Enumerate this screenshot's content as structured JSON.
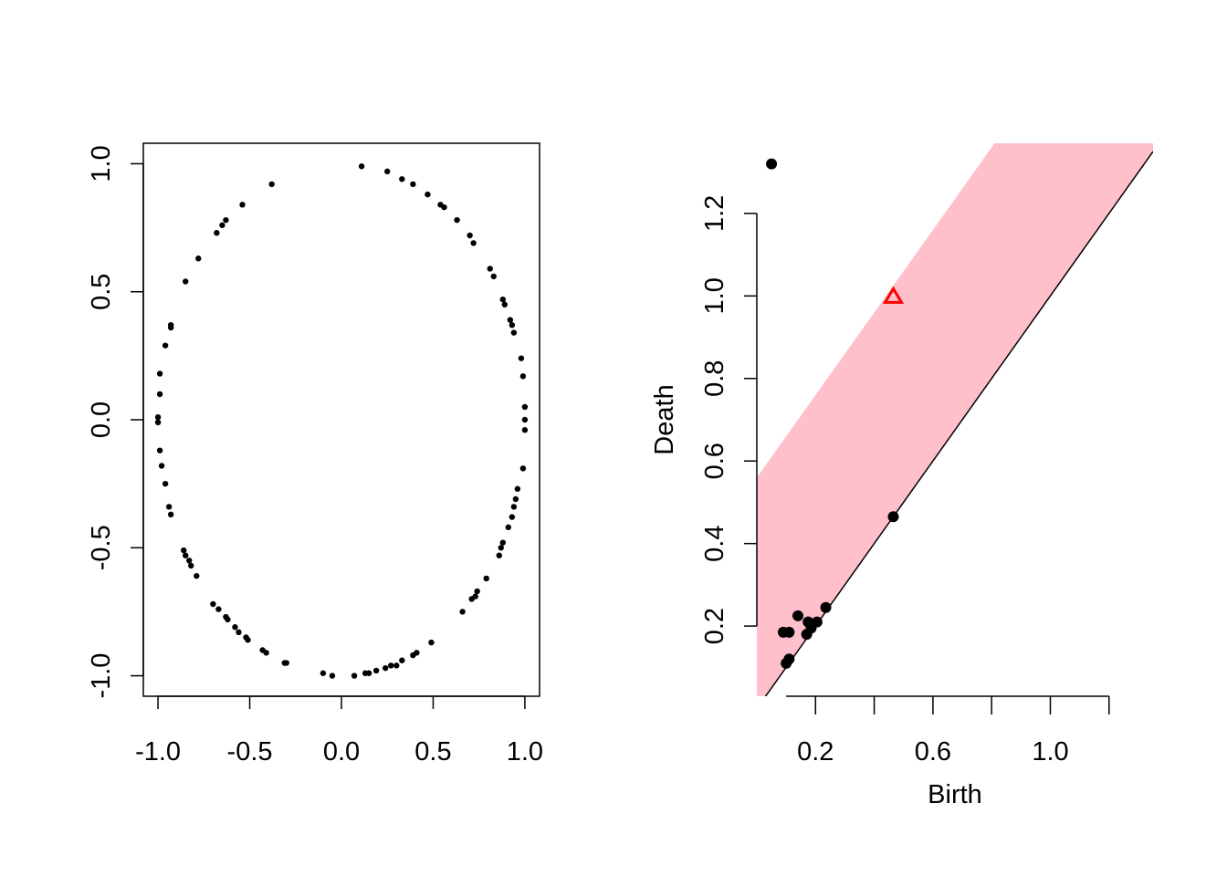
{
  "chart_data": [
    {
      "type": "scatter",
      "title": "",
      "xlabel": "",
      "ylabel": "",
      "xlim": [
        -1.08,
        1.08
      ],
      "ylim": [
        -1.08,
        1.08
      ],
      "x_ticks": [
        -1.0,
        -0.5,
        0.0,
        0.5,
        1.0
      ],
      "x_tick_labels": [
        "-1.0",
        "-0.5",
        "0.0",
        "0.5",
        "1.0"
      ],
      "y_ticks": [
        -1.0,
        -0.5,
        0.0,
        0.5,
        1.0
      ],
      "y_tick_labels": [
        "-1.0",
        "-0.5",
        "0.0",
        "0.5",
        "1.0"
      ],
      "box": true,
      "grid": false,
      "legend": "none",
      "point_color": "#000000",
      "points": [
        [
          0.11,
          0.99
        ],
        [
          0.25,
          0.97
        ],
        [
          0.33,
          0.94
        ],
        [
          0.39,
          0.92
        ],
        [
          0.47,
          0.88
        ],
        [
          0.54,
          0.84
        ],
        [
          0.56,
          0.83
        ],
        [
          0.63,
          0.78
        ],
        [
          0.7,
          0.72
        ],
        [
          0.72,
          0.69
        ],
        [
          0.81,
          0.59
        ],
        [
          0.83,
          0.56
        ],
        [
          0.88,
          0.47
        ],
        [
          0.89,
          0.45
        ],
        [
          0.92,
          0.39
        ],
        [
          0.93,
          0.37
        ],
        [
          0.94,
          0.34
        ],
        [
          0.98,
          0.24
        ],
        [
          0.99,
          0.17
        ],
        [
          1.0,
          0.05
        ],
        [
          1.0,
          0.0
        ],
        [
          1.0,
          -0.04
        ],
        [
          0.99,
          -0.19
        ],
        [
          0.96,
          -0.27
        ],
        [
          0.95,
          -0.31
        ],
        [
          0.94,
          -0.34
        ],
        [
          0.93,
          -0.38
        ],
        [
          0.91,
          -0.42
        ],
        [
          0.88,
          -0.48
        ],
        [
          0.87,
          -0.5
        ],
        [
          0.86,
          -0.53
        ],
        [
          0.79,
          -0.62
        ],
        [
          0.74,
          -0.67
        ],
        [
          0.73,
          -0.69
        ],
        [
          0.71,
          -0.7
        ],
        [
          0.66,
          -0.75
        ],
        [
          0.49,
          -0.87
        ],
        [
          0.41,
          -0.91
        ],
        [
          0.39,
          -0.92
        ],
        [
          0.33,
          -0.94
        ],
        [
          0.3,
          -0.96
        ],
        [
          0.27,
          -0.96
        ],
        [
          0.24,
          -0.97
        ],
        [
          0.19,
          -0.98
        ],
        [
          0.15,
          -0.99
        ],
        [
          0.13,
          -0.99
        ],
        [
          0.07,
          -1.0
        ],
        [
          -0.05,
          -1.0
        ],
        [
          -0.1,
          -0.99
        ],
        [
          -0.3,
          -0.95
        ],
        [
          -0.31,
          -0.95
        ],
        [
          -0.41,
          -0.91
        ],
        [
          -0.43,
          -0.9
        ],
        [
          -0.51,
          -0.86
        ],
        [
          -0.52,
          -0.85
        ],
        [
          -0.56,
          -0.83
        ],
        [
          -0.58,
          -0.81
        ],
        [
          -0.62,
          -0.78
        ],
        [
          -0.63,
          -0.77
        ],
        [
          -0.67,
          -0.74
        ],
        [
          -0.7,
          -0.72
        ],
        [
          -0.79,
          -0.61
        ],
        [
          -0.82,
          -0.57
        ],
        [
          -0.83,
          -0.55
        ],
        [
          -0.85,
          -0.53
        ],
        [
          -0.86,
          -0.51
        ],
        [
          -0.93,
          -0.37
        ],
        [
          -0.94,
          -0.34
        ],
        [
          -0.96,
          -0.25
        ],
        [
          -0.98,
          -0.18
        ],
        [
          -0.99,
          -0.12
        ],
        [
          -1.0,
          -0.01
        ],
        [
          -1.0,
          0.01
        ],
        [
          -0.99,
          0.1
        ],
        [
          -0.99,
          0.18
        ],
        [
          -0.96,
          0.29
        ],
        [
          -0.93,
          0.36
        ],
        [
          -0.93,
          0.37
        ],
        [
          -0.85,
          0.54
        ],
        [
          -0.78,
          0.63
        ],
        [
          -0.68,
          0.73
        ],
        [
          -0.65,
          0.76
        ],
        [
          -0.63,
          0.78
        ],
        [
          -0.54,
          0.84
        ],
        [
          -0.38,
          0.92
        ]
      ]
    },
    {
      "type": "scatter",
      "title": "",
      "xlabel": "Birth",
      "ylabel": "Death",
      "xlim": [
        0.0,
        1.35
      ],
      "ylim": [
        0.03,
        1.37
      ],
      "x_ticks": [
        0.1,
        0.2,
        0.3,
        0.4,
        0.5,
        0.6,
        0.7,
        0.8,
        0.9,
        1.0,
        1.1,
        1.2
      ],
      "x_tick_labels": [
        "",
        "0.2",
        "",
        "",
        "",
        "0.6",
        "",
        "",
        "",
        "1.0",
        "",
        ""
      ],
      "y_ticks": [
        0.2,
        0.4,
        0.6,
        0.8,
        1.0,
        1.2
      ],
      "y_tick_labels": [
        "0.2",
        "0.4",
        "0.6",
        "0.8",
        "1.0",
        "1.2"
      ],
      "box": false,
      "grid": false,
      "legend": "none",
      "diagonal": true,
      "band_width": 0.56,
      "band_color": "#ffc0cb",
      "point_color": "#000000",
      "highlight_color": "#ff0000",
      "points": [
        [
          0.05,
          1.32
        ],
        [
          0.465,
          0.465
        ],
        [
          0.235,
          0.245
        ],
        [
          0.14,
          0.225
        ],
        [
          0.175,
          0.21
        ],
        [
          0.205,
          0.21
        ],
        [
          0.185,
          0.195
        ],
        [
          0.09,
          0.185
        ],
        [
          0.11,
          0.185
        ],
        [
          0.17,
          0.18
        ],
        [
          0.11,
          0.12
        ],
        [
          0.1,
          0.11
        ]
      ],
      "highlighted_points": [
        [
          0.465,
          1.0
        ]
      ]
    }
  ]
}
